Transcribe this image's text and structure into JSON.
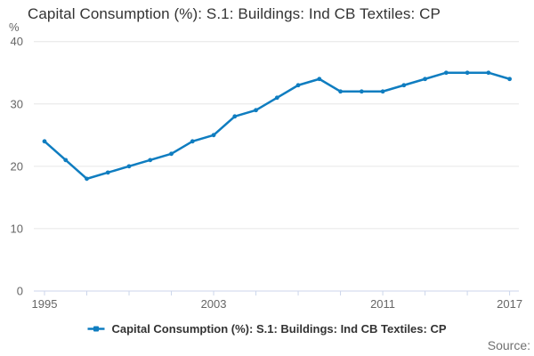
{
  "title": "Capital Consumption (%): S.1: Buildings: Ind CB Textiles: CP",
  "y_axis_unit": "%",
  "source_label": "Source:",
  "legend": {
    "label": "Capital Consumption (%): S.1: Buildings: Ind CB Textiles: CP"
  },
  "colors": {
    "line": "#0f7dc0",
    "grid": "#e6e6e6",
    "axis": "#ccd6eb",
    "tick_label": "#666666",
    "title": "#333333",
    "source_text": "#707070"
  },
  "chart_data": {
    "type": "line",
    "title": "Capital Consumption (%): S.1: Buildings: Ind CB Textiles: CP",
    "series_name": "Capital Consumption (%): S.1: Buildings: Ind CB Textiles: CP",
    "x": [
      1995,
      1996,
      1997,
      1998,
      1999,
      2000,
      2001,
      2002,
      2003,
      2004,
      2005,
      2006,
      2007,
      2008,
      2009,
      2010,
      2011,
      2012,
      2013,
      2014,
      2015,
      2016,
      2017
    ],
    "values": [
      24,
      21,
      18,
      19,
      20,
      21,
      22,
      24,
      25,
      28,
      29,
      31,
      33,
      34,
      32,
      32,
      32,
      33,
      34,
      35,
      35,
      35,
      34
    ],
    "xlabel": "",
    "ylabel": "%",
    "ylim": [
      0,
      40
    ],
    "y_ticks": [
      0,
      10,
      20,
      30,
      40
    ],
    "x_tick_labels": [
      "1995",
      "2003",
      "2011",
      "2017"
    ],
    "x_tick_interval_years": 2,
    "grid": true,
    "marker": "point",
    "legend_position": "bottom"
  }
}
